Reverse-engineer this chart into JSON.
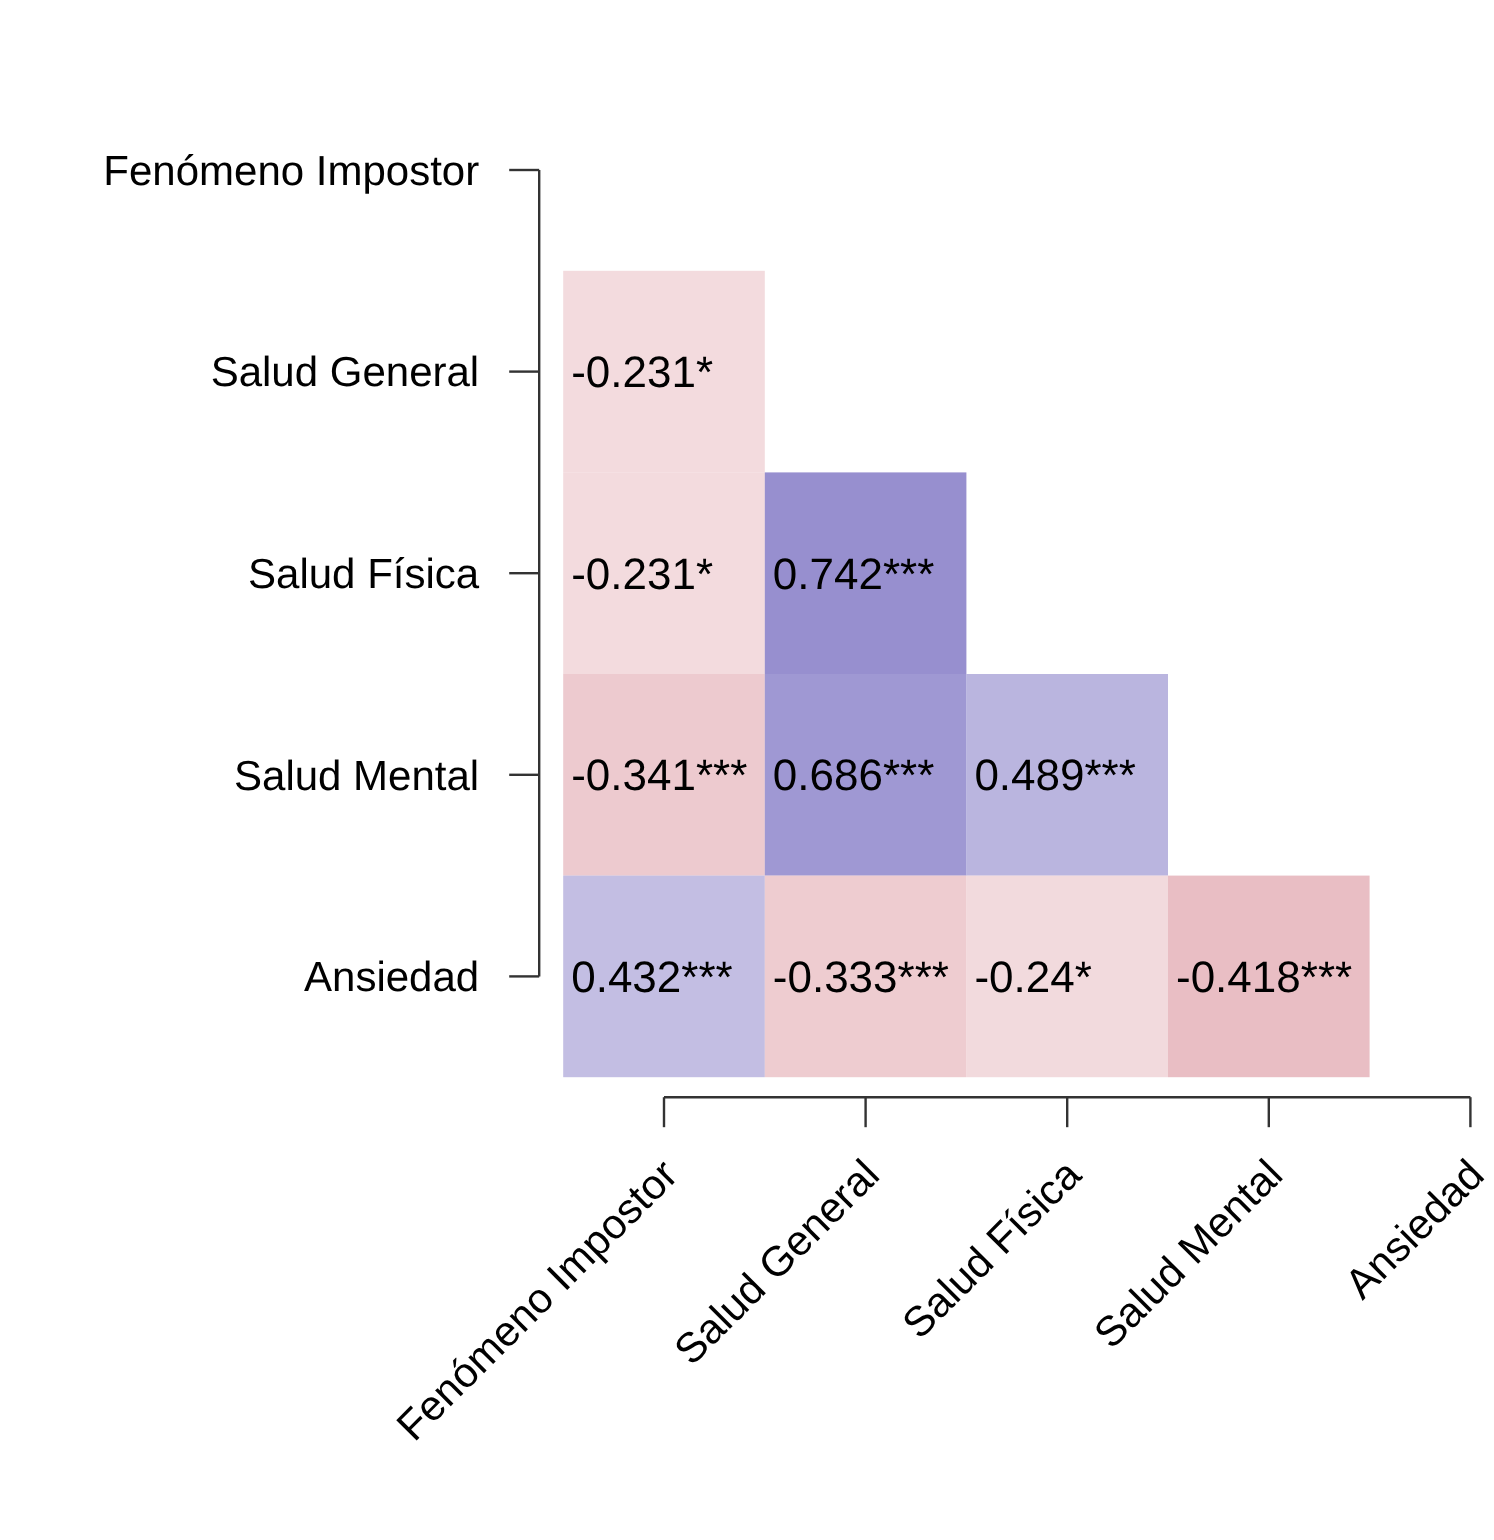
{
  "chart_data": {
    "type": "heatmap",
    "categories": [
      "Fenómeno Impostor",
      "Salud General",
      "Salud Física",
      "Salud Mental",
      "Ansiedad"
    ],
    "y_categories": [
      "Fenómeno Impostor",
      "Salud General",
      "Salud Física",
      "Salud Mental",
      "Ansiedad"
    ],
    "cells": [
      [
        null,
        null,
        null,
        null,
        null
      ],
      [
        -0.231,
        null,
        null,
        null,
        null
      ],
      [
        -0.231,
        0.742,
        null,
        null,
        null
      ],
      [
        -0.341,
        0.686,
        0.489,
        null,
        null
      ],
      [
        0.432,
        -0.333,
        -0.24,
        -0.418,
        null
      ]
    ],
    "cell_labels": [
      [
        null,
        null,
        null,
        null,
        null
      ],
      [
        "-0.231*",
        null,
        null,
        null,
        null
      ],
      [
        "-0.231*",
        "0.742***",
        null,
        null,
        null
      ],
      [
        "-0.341***",
        "0.686***",
        "0.489***",
        null,
        null
      ],
      [
        "0.432***",
        "-0.333***",
        "-0.24*",
        "-0.418***",
        null
      ]
    ]
  }
}
